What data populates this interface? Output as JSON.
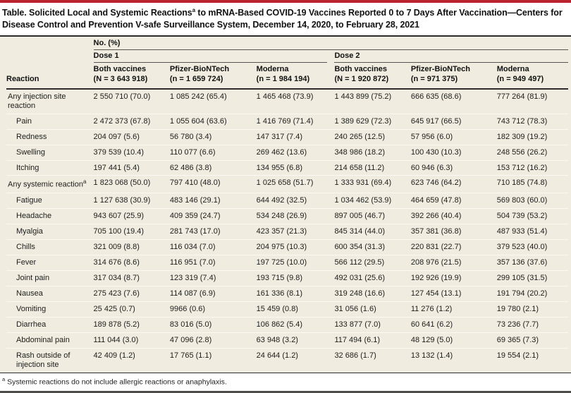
{
  "title": {
    "part1": "Table. Solicited Local and Systemic Reactions",
    "sup": "a",
    "part2": " to mRNA-Based COVID-19 Vaccines Reported 0 to 7 Days After Vaccination—Centers for Disease Control and Prevention V-safe Surveillance System, December 14, 2020, to February 28, 2021"
  },
  "header": {
    "reaction_col": "Reaction",
    "no_pct": "No. (%)",
    "groups": [
      {
        "label": "Dose 1",
        "cols": [
          {
            "line1": "Both vaccines",
            "line2": "(N = 3 643 918)"
          },
          {
            "line1": "Pfizer-BioNTech",
            "line2": "(n = 1 659 724)"
          },
          {
            "line1": "Moderna",
            "line2": "(n = 1 984 194)"
          }
        ]
      },
      {
        "label": "Dose 2",
        "cols": [
          {
            "line1": "Both vaccines",
            "line2": "(N = 1 920 872)"
          },
          {
            "line1": "Pfizer-BioNTech",
            "line2": "(n = 971 375)"
          },
          {
            "line1": "Moderna",
            "line2": "(n = 949 497)"
          }
        ]
      }
    ]
  },
  "rows": [
    {
      "label": "Any injection site reaction",
      "sup": "",
      "indent": false,
      "cells": [
        "2 550 710 (70.0)",
        "1 085 242 (65.4)",
        "1 465 468 (73.9)",
        "1 443 899 (75.2)",
        "666 635 (68.6)",
        "777 264 (81.9)"
      ]
    },
    {
      "label": "Pain",
      "sup": "",
      "indent": true,
      "cells": [
        "2 472 373 (67.8)",
        "1 055 604 (63.6)",
        "1 416 769 (71.4)",
        "1 389 629 (72.3)",
        "645 917 (66.5)",
        "743 712 (78.3)"
      ]
    },
    {
      "label": "Redness",
      "sup": "",
      "indent": true,
      "cells": [
        "204 097 (5.6)",
        "56 780 (3.4)",
        "147 317 (7.4)",
        "240 265 (12.5)",
        "57 956 (6.0)",
        "182 309 (19.2)"
      ]
    },
    {
      "label": "Swelling",
      "sup": "",
      "indent": true,
      "cells": [
        "379 539 (10.4)",
        "110 077 (6.6)",
        "269 462 (13.6)",
        "348 986 (18.2)",
        "100 430 (10.3)",
        "248 556 (26.2)"
      ]
    },
    {
      "label": "Itching",
      "sup": "",
      "indent": true,
      "cells": [
        "197 441 (5.4)",
        "62 486 (3.8)",
        "134 955 (6.8)",
        "214 658 (11.2)",
        "60 946 (6.3)",
        "153 712 (16.2)"
      ]
    },
    {
      "label": "Any systemic reaction",
      "sup": "a",
      "indent": false,
      "cells": [
        "1 823 068 (50.0)",
        "797 410 (48.0)",
        "1 025 658 (51.7)",
        "1 333 931 (69.4)",
        "623 746 (64.2)",
        "710 185 (74.8)"
      ]
    },
    {
      "label": "Fatigue",
      "sup": "",
      "indent": true,
      "cells": [
        "1 127 638 (30.9)",
        "483 146 (29.1)",
        "644 492 (32.5)",
        "1 034 462 (53.9)",
        "464 659 (47.8)",
        "569 803 (60.0)"
      ]
    },
    {
      "label": "Headache",
      "sup": "",
      "indent": true,
      "cells": [
        "943 607 (25.9)",
        "409 359 (24.7)",
        "534 248 (26.9)",
        "897 005 (46.7)",
        "392 266 (40.4)",
        "504 739 (53.2)"
      ]
    },
    {
      "label": "Myalgia",
      "sup": "",
      "indent": true,
      "cells": [
        "705 100 (19.4)",
        "281 743 (17.0)",
        "423 357 (21.3)",
        "845 314 (44.0)",
        "357 381 (36.8)",
        "487 933 (51.4)"
      ]
    },
    {
      "label": "Chills",
      "sup": "",
      "indent": true,
      "cells": [
        "321 009 (8.8)",
        "116 034 (7.0)",
        "204 975 (10.3)",
        "600 354 (31.3)",
        "220 831 (22.7)",
        "379 523 (40.0)"
      ]
    },
    {
      "label": "Fever",
      "sup": "",
      "indent": true,
      "cells": [
        "314 676 (8.6)",
        "116 951 (7.0)",
        "197 725 (10.0)",
        "566 112 (29.5)",
        "208 976 (21.5)",
        "357 136 (37.6)"
      ]
    },
    {
      "label": "Joint pain",
      "sup": "",
      "indent": true,
      "cells": [
        "317 034 (8.7)",
        "123 319 (7.4)",
        "193 715 (9.8)",
        "492 031 (25.6)",
        "192 926 (19.9)",
        "299 105 (31.5)"
      ]
    },
    {
      "label": "Nausea",
      "sup": "",
      "indent": true,
      "cells": [
        "275 423 (7.6)",
        "114 087 (6.9)",
        "161 336 (8.1)",
        "319 248 (16.6)",
        "127 454 (13.1)",
        "191 794 (20.2)"
      ]
    },
    {
      "label": "Vomiting",
      "sup": "",
      "indent": true,
      "cells": [
        "25 425 (0.7)",
        "9966 (0.6)",
        "15 459 (0.8)",
        "31 056 (1.6)",
        "11 276 (1.2)",
        "19 780 (2.1)"
      ]
    },
    {
      "label": "Diarrhea",
      "sup": "",
      "indent": true,
      "cells": [
        "189 878 (5.2)",
        "83 016 (5.0)",
        "106 862 (5.4)",
        "133 877 (7.0)",
        "60 641 (6.2)",
        "73 236 (7.7)"
      ]
    },
    {
      "label": "Abdominal pain",
      "sup": "",
      "indent": true,
      "cells": [
        "111 044 (3.0)",
        "47 096 (2.8)",
        "63 948 (3.2)",
        "117 494 (6.1)",
        "48 129 (5.0)",
        "69 365 (7.3)"
      ]
    },
    {
      "label": "Rash outside of injection site",
      "sup": "",
      "indent": true,
      "cells": [
        "42 409 (1.2)",
        "17 765 (1.1)",
        "24 644 (1.2)",
        "32 686 (1.7)",
        "13 132 (1.4)",
        "19 554 (2.1)"
      ]
    }
  ],
  "footnote": {
    "marker": "a",
    "text": " Systemic reactions do not include allergic reactions or anaphylaxis."
  },
  "colors": {
    "accent_red": "#bc2130",
    "table_background": "#f0ede0",
    "rule_dark": "#2e2d2b",
    "bottom_rule_gray": "#4c4b48"
  }
}
